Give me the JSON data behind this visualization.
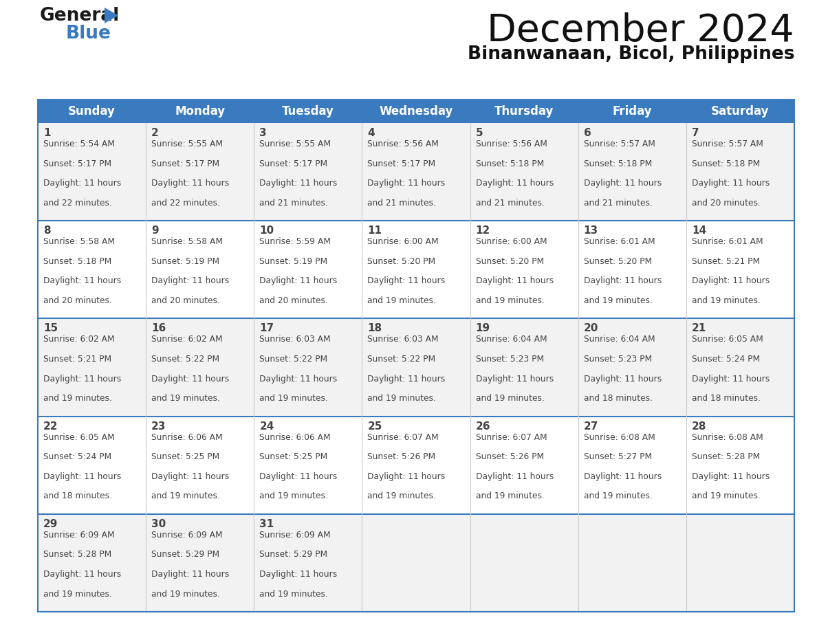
{
  "title": "December 2024",
  "subtitle": "Binanwanaan, Bicol, Philippines",
  "header_color": "#3a7abf",
  "header_text_color": "#ffffff",
  "day_names": [
    "Sunday",
    "Monday",
    "Tuesday",
    "Wednesday",
    "Thursday",
    "Friday",
    "Saturday"
  ],
  "bg_color": "#ffffff",
  "cell_bg_even": "#f2f2f2",
  "cell_bg_odd": "#ffffff",
  "border_color": "#3a7abf",
  "text_color": "#444444",
  "days": [
    {
      "day": 1,
      "col": 0,
      "row": 0,
      "sunrise": "5:54 AM",
      "sunset": "5:17 PM",
      "daylight": "11 hours and 22 minutes."
    },
    {
      "day": 2,
      "col": 1,
      "row": 0,
      "sunrise": "5:55 AM",
      "sunset": "5:17 PM",
      "daylight": "11 hours and 22 minutes."
    },
    {
      "day": 3,
      "col": 2,
      "row": 0,
      "sunrise": "5:55 AM",
      "sunset": "5:17 PM",
      "daylight": "11 hours and 21 minutes."
    },
    {
      "day": 4,
      "col": 3,
      "row": 0,
      "sunrise": "5:56 AM",
      "sunset": "5:17 PM",
      "daylight": "11 hours and 21 minutes."
    },
    {
      "day": 5,
      "col": 4,
      "row": 0,
      "sunrise": "5:56 AM",
      "sunset": "5:18 PM",
      "daylight": "11 hours and 21 minutes."
    },
    {
      "day": 6,
      "col": 5,
      "row": 0,
      "sunrise": "5:57 AM",
      "sunset": "5:18 PM",
      "daylight": "11 hours and 21 minutes."
    },
    {
      "day": 7,
      "col": 6,
      "row": 0,
      "sunrise": "5:57 AM",
      "sunset": "5:18 PM",
      "daylight": "11 hours and 20 minutes."
    },
    {
      "day": 8,
      "col": 0,
      "row": 1,
      "sunrise": "5:58 AM",
      "sunset": "5:18 PM",
      "daylight": "11 hours and 20 minutes."
    },
    {
      "day": 9,
      "col": 1,
      "row": 1,
      "sunrise": "5:58 AM",
      "sunset": "5:19 PM",
      "daylight": "11 hours and 20 minutes."
    },
    {
      "day": 10,
      "col": 2,
      "row": 1,
      "sunrise": "5:59 AM",
      "sunset": "5:19 PM",
      "daylight": "11 hours and 20 minutes."
    },
    {
      "day": 11,
      "col": 3,
      "row": 1,
      "sunrise": "6:00 AM",
      "sunset": "5:20 PM",
      "daylight": "11 hours and 19 minutes."
    },
    {
      "day": 12,
      "col": 4,
      "row": 1,
      "sunrise": "6:00 AM",
      "sunset": "5:20 PM",
      "daylight": "11 hours and 19 minutes."
    },
    {
      "day": 13,
      "col": 5,
      "row": 1,
      "sunrise": "6:01 AM",
      "sunset": "5:20 PM",
      "daylight": "11 hours and 19 minutes."
    },
    {
      "day": 14,
      "col": 6,
      "row": 1,
      "sunrise": "6:01 AM",
      "sunset": "5:21 PM",
      "daylight": "11 hours and 19 minutes."
    },
    {
      "day": 15,
      "col": 0,
      "row": 2,
      "sunrise": "6:02 AM",
      "sunset": "5:21 PM",
      "daylight": "11 hours and 19 minutes."
    },
    {
      "day": 16,
      "col": 1,
      "row": 2,
      "sunrise": "6:02 AM",
      "sunset": "5:22 PM",
      "daylight": "11 hours and 19 minutes."
    },
    {
      "day": 17,
      "col": 2,
      "row": 2,
      "sunrise": "6:03 AM",
      "sunset": "5:22 PM",
      "daylight": "11 hours and 19 minutes."
    },
    {
      "day": 18,
      "col": 3,
      "row": 2,
      "sunrise": "6:03 AM",
      "sunset": "5:22 PM",
      "daylight": "11 hours and 19 minutes."
    },
    {
      "day": 19,
      "col": 4,
      "row": 2,
      "sunrise": "6:04 AM",
      "sunset": "5:23 PM",
      "daylight": "11 hours and 19 minutes."
    },
    {
      "day": 20,
      "col": 5,
      "row": 2,
      "sunrise": "6:04 AM",
      "sunset": "5:23 PM",
      "daylight": "11 hours and 18 minutes."
    },
    {
      "day": 21,
      "col": 6,
      "row": 2,
      "sunrise": "6:05 AM",
      "sunset": "5:24 PM",
      "daylight": "11 hours and 18 minutes."
    },
    {
      "day": 22,
      "col": 0,
      "row": 3,
      "sunrise": "6:05 AM",
      "sunset": "5:24 PM",
      "daylight": "11 hours and 18 minutes."
    },
    {
      "day": 23,
      "col": 1,
      "row": 3,
      "sunrise": "6:06 AM",
      "sunset": "5:25 PM",
      "daylight": "11 hours and 19 minutes."
    },
    {
      "day": 24,
      "col": 2,
      "row": 3,
      "sunrise": "6:06 AM",
      "sunset": "5:25 PM",
      "daylight": "11 hours and 19 minutes."
    },
    {
      "day": 25,
      "col": 3,
      "row": 3,
      "sunrise": "6:07 AM",
      "sunset": "5:26 PM",
      "daylight": "11 hours and 19 minutes."
    },
    {
      "day": 26,
      "col": 4,
      "row": 3,
      "sunrise": "6:07 AM",
      "sunset": "5:26 PM",
      "daylight": "11 hours and 19 minutes."
    },
    {
      "day": 27,
      "col": 5,
      "row": 3,
      "sunrise": "6:08 AM",
      "sunset": "5:27 PM",
      "daylight": "11 hours and 19 minutes."
    },
    {
      "day": 28,
      "col": 6,
      "row": 3,
      "sunrise": "6:08 AM",
      "sunset": "5:28 PM",
      "daylight": "11 hours and 19 minutes."
    },
    {
      "day": 29,
      "col": 0,
      "row": 4,
      "sunrise": "6:09 AM",
      "sunset": "5:28 PM",
      "daylight": "11 hours and 19 minutes."
    },
    {
      "day": 30,
      "col": 1,
      "row": 4,
      "sunrise": "6:09 AM",
      "sunset": "5:29 PM",
      "daylight": "11 hours and 19 minutes."
    },
    {
      "day": 31,
      "col": 2,
      "row": 4,
      "sunrise": "6:09 AM",
      "sunset": "5:29 PM",
      "daylight": "11 hours and 19 minutes."
    }
  ]
}
